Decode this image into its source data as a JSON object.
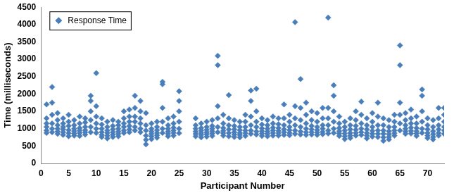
{
  "chart_data": {
    "type": "scatter",
    "x_label": "Participant Number",
    "y_label": "Time (milliseconds)",
    "xlim": [
      0,
      73
    ],
    "xticks": [
      0,
      5,
      10,
      15,
      20,
      25,
      30,
      35,
      40,
      45,
      50,
      55,
      60,
      65,
      70
    ],
    "ylim": [
      0,
      4500
    ],
    "yticks": [
      0,
      500,
      1000,
      1500,
      2000,
      2500,
      3000,
      3500,
      4000,
      4500
    ],
    "grid": false,
    "legend": "upper left",
    "x": [
      1,
      1,
      1,
      1,
      1,
      1,
      2,
      2,
      2,
      2,
      2,
      2,
      3,
      3,
      3,
      3,
      3,
      3,
      4,
      4,
      4,
      4,
      4,
      4,
      5,
      5,
      5,
      5,
      5,
      5,
      6,
      6,
      6,
      6,
      6,
      6,
      7,
      7,
      7,
      7,
      7,
      7,
      8,
      8,
      8,
      8,
      8,
      8,
      9,
      9,
      9,
      9,
      9,
      9,
      10,
      10,
      10,
      10,
      10,
      10,
      11,
      11,
      11,
      11,
      11,
      11,
      12,
      12,
      12,
      12,
      12,
      12,
      13,
      13,
      13,
      13,
      13,
      13,
      14,
      14,
      14,
      14,
      14,
      14,
      15,
      15,
      15,
      15,
      15,
      15,
      16,
      16,
      16,
      16,
      16,
      16,
      17,
      17,
      17,
      17,
      17,
      17,
      18,
      18,
      18,
      18,
      18,
      18,
      19,
      19,
      19,
      19,
      19,
      19,
      20,
      20,
      20,
      20,
      20,
      20,
      21,
      21,
      21,
      21,
      21,
      21,
      22,
      22,
      22,
      22,
      22,
      22,
      23,
      23,
      23,
      23,
      23,
      23,
      24,
      24,
      24,
      24,
      24,
      24,
      25,
      25,
      25,
      25,
      25,
      25,
      28,
      28,
      28,
      28,
      28,
      28,
      29,
      29,
      29,
      29,
      29,
      29,
      30,
      30,
      30,
      30,
      30,
      30,
      31,
      31,
      31,
      31,
      31,
      31,
      32,
      32,
      32,
      32,
      32,
      32,
      33,
      33,
      33,
      33,
      33,
      33,
      34,
      34,
      34,
      34,
      34,
      34,
      35,
      35,
      35,
      35,
      35,
      35,
      36,
      36,
      36,
      36,
      36,
      36,
      37,
      37,
      37,
      37,
      37,
      37,
      38,
      38,
      38,
      38,
      38,
      38,
      39,
      39,
      39,
      39,
      39,
      39,
      40,
      40,
      40,
      40,
      40,
      40,
      41,
      41,
      41,
      41,
      41,
      41,
      42,
      42,
      42,
      42,
      42,
      42,
      43,
      43,
      43,
      43,
      43,
      43,
      44,
      44,
      44,
      44,
      44,
      44,
      45,
      45,
      45,
      45,
      45,
      45,
      46,
      46,
      46,
      46,
      46,
      46,
      47,
      47,
      47,
      47,
      47,
      47,
      48,
      48,
      48,
      48,
      48,
      48,
      49,
      49,
      49,
      49,
      49,
      49,
      50,
      50,
      50,
      50,
      50,
      50,
      51,
      51,
      51,
      51,
      51,
      51,
      52,
      52,
      52,
      52,
      52,
      52,
      53,
      53,
      53,
      53,
      53,
      53,
      54,
      54,
      54,
      54,
      54,
      54,
      55,
      55,
      55,
      55,
      55,
      55,
      56,
      56,
      56,
      56,
      56,
      56,
      57,
      57,
      57,
      57,
      57,
      57,
      58,
      58,
      58,
      58,
      58,
      58,
      59,
      59,
      59,
      59,
      59,
      59,
      60,
      60,
      60,
      60,
      60,
      60,
      61,
      61,
      61,
      61,
      61,
      61,
      62,
      62,
      62,
      62,
      62,
      62,
      63,
      63,
      63,
      63,
      63,
      63,
      64,
      64,
      64,
      64,
      64,
      64,
      65,
      65,
      65,
      65,
      65,
      65,
      66,
      66,
      66,
      66,
      66,
      66,
      67,
      67,
      67,
      67,
      67,
      67,
      68,
      68,
      68,
      68,
      68,
      68,
      69,
      69,
      69,
      69,
      69,
      69,
      70,
      70,
      70,
      70,
      70,
      70,
      71,
      71,
      71,
      71,
      71,
      71,
      72,
      72,
      72,
      72,
      72,
      72,
      73,
      73,
      73,
      73,
      73,
      73
    ],
    "series": [
      {
        "name": "Response Time",
        "color": "#4a7ebb",
        "marker": "diamond",
        "values": [
          1700,
          1300,
          1150,
          1050,
          950,
          880,
          2200,
          1750,
          1400,
          1150,
          1000,
          900,
          1450,
          1250,
          1100,
          1000,
          920,
          850,
          1300,
          1150,
          1050,
          980,
          900,
          820,
          1400,
          1200,
          1080,
          960,
          870,
          780,
          1250,
          1100,
          1000,
          930,
          860,
          800,
          1350,
          1150,
          1020,
          950,
          880,
          790,
          1300,
          1180,
          1050,
          960,
          900,
          830,
          1950,
          1800,
          1500,
          1250,
          1050,
          900,
          2600,
          1650,
          1350,
          1150,
          1000,
          880,
          1300,
          1120,
          1000,
          900,
          820,
          760,
          1200,
          1050,
          950,
          880,
          800,
          720,
          1250,
          1080,
          980,
          900,
          830,
          760,
          1200,
          1100,
          1000,
          920,
          850,
          780,
          1500,
          1300,
          1150,
          1050,
          950,
          880,
          1550,
          1350,
          1200,
          1080,
          980,
          900,
          1950,
          1600,
          1350,
          1200,
          1050,
          950,
          1800,
          1500,
          1300,
          1150,
          1000,
          900,
          1450,
          1100,
          950,
          800,
          680,
          550,
          1150,
          1000,
          920,
          850,
          780,
          700,
          1200,
          1050,
          960,
          880,
          810,
          740,
          2350,
          2280,
          1600,
          1200,
          1000,
          880,
          1300,
          1100,
          1000,
          920,
          850,
          780,
          1350,
          1150,
          1030,
          950,
          880,
          800,
          2080,
          1800,
          1500,
          1200,
          1000,
          870,
          1300,
          1100,
          1000,
          920,
          850,
          780,
          1150,
          1020,
          950,
          880,
          820,
          750,
          1200,
          1050,
          970,
          900,
          840,
          770,
          1250,
          1080,
          1000,
          930,
          860,
          790,
          3100,
          2830,
          1650,
          1300,
          1050,
          900,
          1400,
          1150,
          1020,
          940,
          870,
          800,
          1970,
          1300,
          1100,
          980,
          880,
          780,
          1250,
          1080,
          980,
          900,
          830,
          760,
          1200,
          1050,
          960,
          880,
          820,
          750,
          1400,
          1200,
          1050,
          950,
          870,
          790,
          2100,
          1800,
          1350,
          1100,
          950,
          850,
          2150,
          1500,
          1200,
          1050,
          920,
          830,
          1300,
          1120,
          1010,
          930,
          860,
          790,
          1250,
          1100,
          1000,
          920,
          850,
          780,
          1350,
          1150,
          1030,
          950,
          880,
          800,
          1300,
          1130,
          1020,
          940,
          870,
          800,
          1700,
          1300,
          1100,
          980,
          900,
          820,
          1400,
          1200,
          1050,
          960,
          880,
          810,
          4070,
          1650,
          1300,
          1100,
          950,
          850,
          2430,
          1600,
          1250,
          1050,
          920,
          830,
          1750,
          1400,
          1150,
          1000,
          900,
          820,
          1500,
          1250,
          1080,
          980,
          900,
          830,
          1450,
          1200,
          1050,
          960,
          890,
          820,
          1600,
          1300,
          1100,
          1000,
          910,
          840,
          4200,
          1600,
          1300,
          1100,
          950,
          860,
          2250,
          1950,
          1500,
          1200,
          1000,
          880,
          1350,
          1150,
          1020,
          930,
          860,
          790,
          1200,
          1050,
          950,
          860,
          780,
          700,
          1300,
          1100,
          980,
          880,
          800,
          730,
          1500,
          1250,
          1080,
          970,
          880,
          800,
          1780,
          1400,
          1150,
          1000,
          900,
          820,
          1300,
          1100,
          980,
          880,
          800,
          720,
          1450,
          1200,
          1050,
          940,
          850,
          770,
          1750,
          1350,
          1100,
          950,
          850,
          760,
          1300,
          1100,
          950,
          850,
          750,
          650,
          1250,
          1050,
          930,
          840,
          760,
          690,
          1400,
          1200,
          1050,
          950,
          870,
          800,
          3400,
          2830,
          1750,
          1400,
          1150,
          950,
          1450,
          1250,
          1100,
          1000,
          920,
          850,
          1550,
          1300,
          1150,
          1030,
          940,
          860,
          1350,
          1150,
          1020,
          930,
          860,
          790,
          2130,
          1950,
          1500,
          1200,
          1000,
          880,
          1300,
          1100,
          980,
          880,
          800,
          730,
          1250,
          1050,
          930,
          840,
          760,
          690,
          1600,
          1300,
          1100,
          980,
          880,
          800,
          1600,
          1400,
          1200,
          1050,
          950,
          850
        ]
      }
    ]
  }
}
